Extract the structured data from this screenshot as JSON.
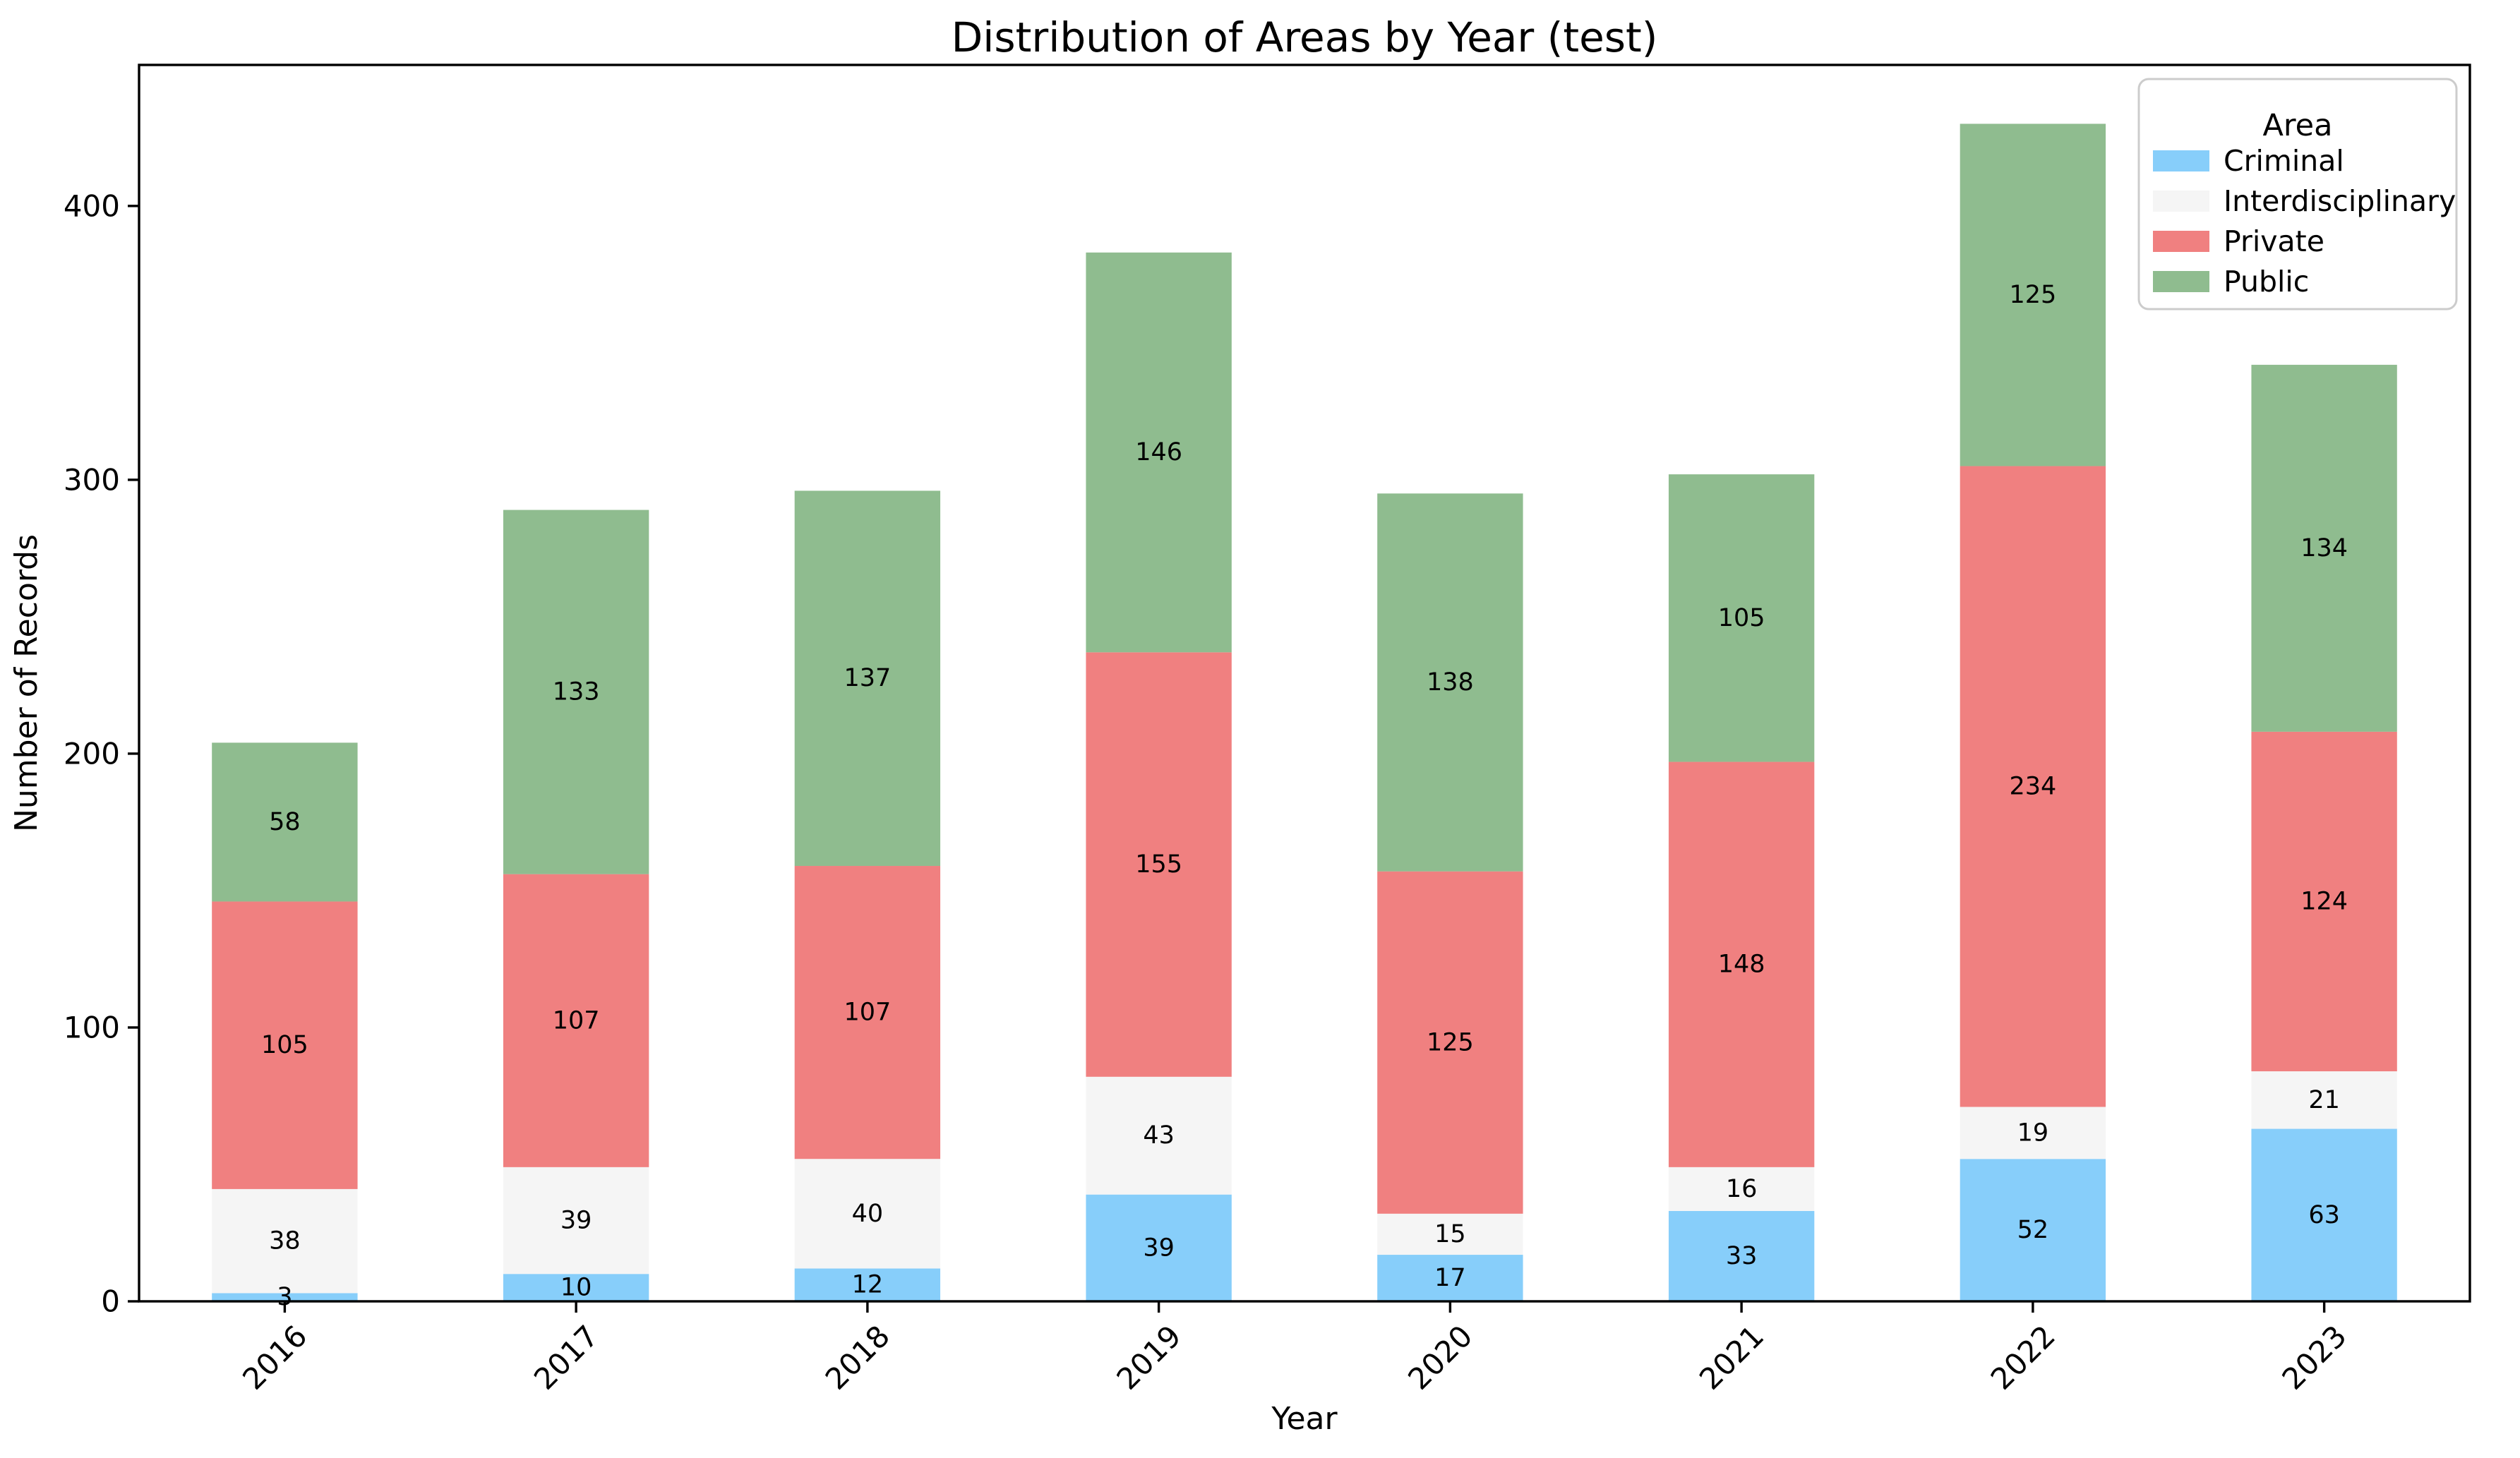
{
  "title": "Distribution of Areas by Year (test)",
  "chart_data": {
    "type": "bar",
    "stacked": true,
    "title": "Distribution of Areas by Year (test)",
    "xlabel": "Year",
    "ylabel": "Number of Records",
    "categories": [
      "2016",
      "2017",
      "2018",
      "2019",
      "2020",
      "2021",
      "2022",
      "2023"
    ],
    "series": [
      {
        "name": "Criminal",
        "color": "#87CEFA",
        "values": [
          3,
          10,
          12,
          39,
          17,
          33,
          52,
          63
        ]
      },
      {
        "name": "Interdisciplinary",
        "color": "#F5F5F5",
        "values": [
          38,
          39,
          40,
          43,
          15,
          16,
          19,
          21
        ]
      },
      {
        "name": "Private",
        "color": "#F08080",
        "values": [
          105,
          107,
          107,
          155,
          125,
          148,
          234,
          124
        ]
      },
      {
        "name": "Public",
        "color": "#8FBC8F",
        "values": [
          58,
          133,
          137,
          146,
          138,
          105,
          125,
          134
        ]
      }
    ],
    "yticks": [
      0,
      100,
      200,
      300,
      400
    ],
    "ylim": [
      0,
      451.5
    ],
    "grid": false,
    "legend_title": "Area",
    "legend_position": "upper right",
    "bar_label_color": "#000000",
    "axis_color": "#000000",
    "legend_border_color": "#cccccc",
    "background_color": "#ffffff"
  }
}
